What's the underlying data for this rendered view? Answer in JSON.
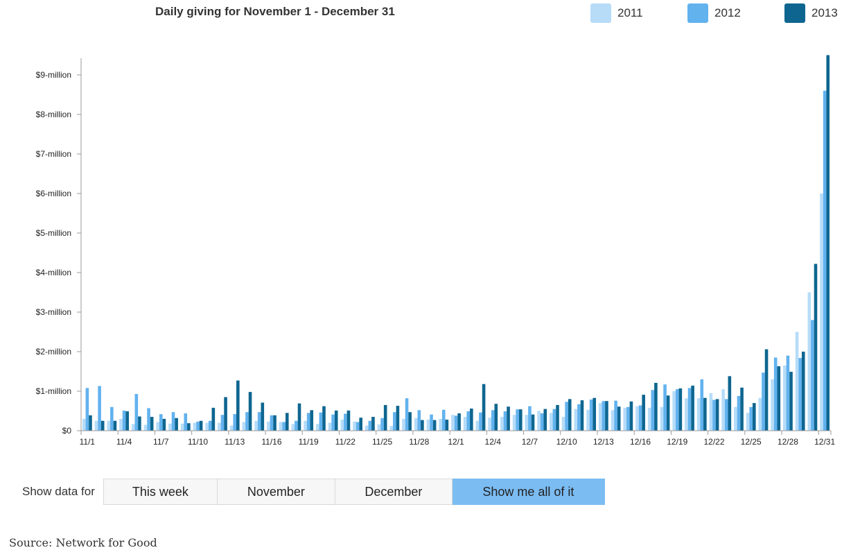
{
  "colors": {
    "s2011": "#b6dcf8",
    "s2012": "#62b2ee",
    "s2013": "#0e6690",
    "axis": "#999999",
    "active_button": "#7bbcf2"
  },
  "chart_data": {
    "type": "bar",
    "title": "Daily giving for November 1 - December 31",
    "xlabel": "",
    "ylabel": "",
    "ylim": [
      0,
      9400000
    ],
    "y_ticks": [
      {
        "value": 0,
        "label": "$0"
      },
      {
        "value": 1000000,
        "label": "$1-million"
      },
      {
        "value": 2000000,
        "label": "$2-million"
      },
      {
        "value": 3000000,
        "label": "$3-million"
      },
      {
        "value": 4000000,
        "label": "$4-million"
      },
      {
        "value": 5000000,
        "label": "$5-million"
      },
      {
        "value": 6000000,
        "label": "$6-million"
      },
      {
        "value": 7000000,
        "label": "$7-million"
      },
      {
        "value": 8000000,
        "label": "$8-million"
      },
      {
        "value": 9000000,
        "label": "$9-million"
      }
    ],
    "x_tick_labels": [
      "11/1",
      "11/4",
      "11/7",
      "11/10",
      "11/13",
      "11/16",
      "11/19",
      "11/22",
      "11/25",
      "11/28",
      "12/1",
      "12/4",
      "12/7",
      "12/10",
      "12/13",
      "12/16",
      "12/19",
      "12/22",
      "12/25",
      "12/28",
      "12/31"
    ],
    "grid": false,
    "legend_position": "top-right",
    "categories": [
      "11/1",
      "11/2",
      "11/3",
      "11/4",
      "11/5",
      "11/6",
      "11/7",
      "11/8",
      "11/9",
      "11/10",
      "11/11",
      "11/12",
      "11/13",
      "11/14",
      "11/15",
      "11/16",
      "11/17",
      "11/18",
      "11/19",
      "11/20",
      "11/21",
      "11/22",
      "11/23",
      "11/24",
      "11/25",
      "11/26",
      "11/27",
      "11/28",
      "11/29",
      "11/30",
      "12/1",
      "12/2",
      "12/3",
      "12/4",
      "12/5",
      "12/6",
      "12/7",
      "12/8",
      "12/9",
      "12/10",
      "12/11",
      "12/12",
      "12/13",
      "12/14",
      "12/15",
      "12/16",
      "12/17",
      "12/18",
      "12/19",
      "12/20",
      "12/21",
      "12/22",
      "12/23",
      "12/24",
      "12/25",
      "12/26",
      "12/27",
      "12/28",
      "12/29",
      "12/30",
      "12/31"
    ],
    "series": [
      {
        "name": "2011",
        "values": [
          300000,
          250000,
          250000,
          300000,
          170000,
          150000,
          220000,
          180000,
          180000,
          200000,
          200000,
          200000,
          130000,
          220000,
          250000,
          230000,
          220000,
          170000,
          250000,
          170000,
          200000,
          280000,
          230000,
          130000,
          160000,
          120000,
          300000,
          320000,
          280000,
          300000,
          400000,
          350000,
          250000,
          330000,
          350000,
          400000,
          400000,
          500000,
          450000,
          350000,
          550000,
          530000,
          700000,
          520000,
          580000,
          620000,
          580000,
          600000,
          1000000,
          820000,
          820000,
          950000,
          1050000,
          600000,
          450000,
          830000,
          1300000,
          1650000,
          2500000,
          3500000,
          6000000
        ]
      },
      {
        "name": "2012",
        "values": [
          1080000,
          1130000,
          600000,
          510000,
          930000,
          570000,
          420000,
          470000,
          440000,
          230000,
          250000,
          400000,
          420000,
          470000,
          470000,
          390000,
          220000,
          250000,
          450000,
          460000,
          410000,
          430000,
          220000,
          250000,
          320000,
          470000,
          820000,
          520000,
          410000,
          530000,
          380000,
          490000,
          460000,
          520000,
          490000,
          540000,
          620000,
          440000,
          550000,
          730000,
          670000,
          790000,
          750000,
          760000,
          600000,
          640000,
          1030000,
          1170000,
          1050000,
          1080000,
          1300000,
          780000,
          800000,
          880000,
          600000,
          1470000,
          1850000,
          1900000,
          1840000,
          2800000,
          8600000
        ]
      },
      {
        "name": "2013",
        "values": [
          390000,
          250000,
          250000,
          490000,
          360000,
          350000,
          300000,
          320000,
          190000,
          250000,
          580000,
          850000,
          1270000,
          980000,
          710000,
          390000,
          450000,
          690000,
          520000,
          620000,
          510000,
          510000,
          330000,
          350000,
          650000,
          630000,
          470000,
          270000,
          270000,
          280000,
          440000,
          560000,
          1180000,
          680000,
          610000,
          540000,
          410000,
          550000,
          650000,
          800000,
          770000,
          830000,
          750000,
          610000,
          740000,
          910000,
          1210000,
          890000,
          1070000,
          1140000,
          830000,
          800000,
          1380000,
          1090000,
          700000,
          2060000,
          1630000,
          1490000,
          2000000,
          4220000,
          9500000
        ]
      }
    ]
  },
  "controls": {
    "label": "Show data for",
    "buttons": [
      {
        "label": "This week",
        "active": false
      },
      {
        "label": "November",
        "active": false
      },
      {
        "label": "December",
        "active": false
      },
      {
        "label": "Show me all of it",
        "active": true
      }
    ]
  },
  "source": "Source: Network for Good"
}
